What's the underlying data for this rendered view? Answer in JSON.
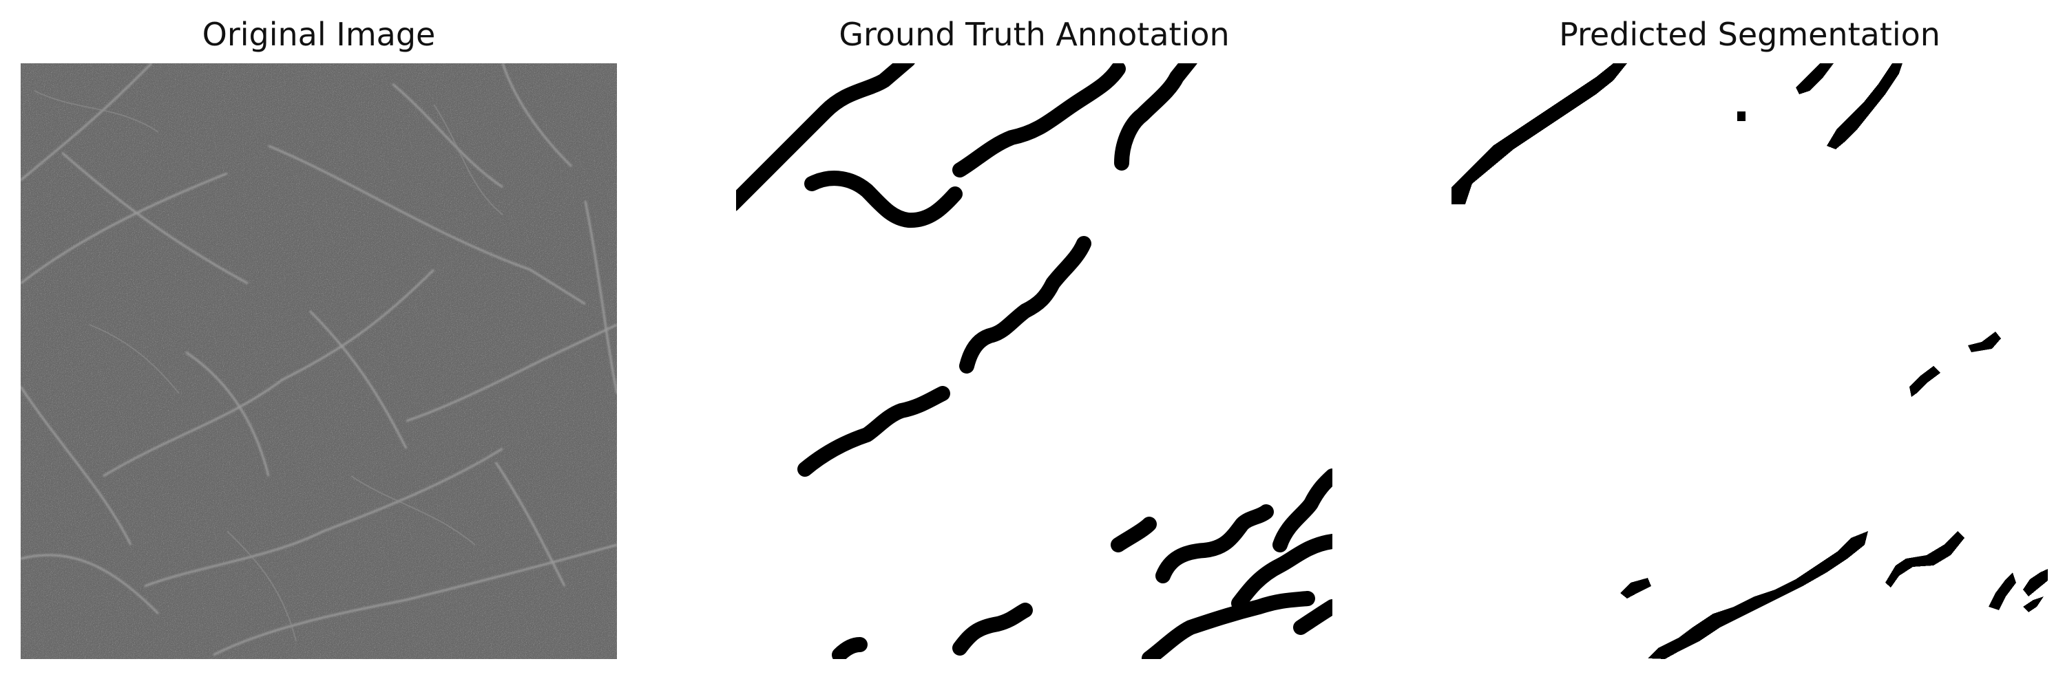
{
  "panels": [
    {
      "title": "Original Image"
    },
    {
      "title": "Ground Truth Annotation"
    },
    {
      "title": "Predicted Segmentation"
    }
  ]
}
